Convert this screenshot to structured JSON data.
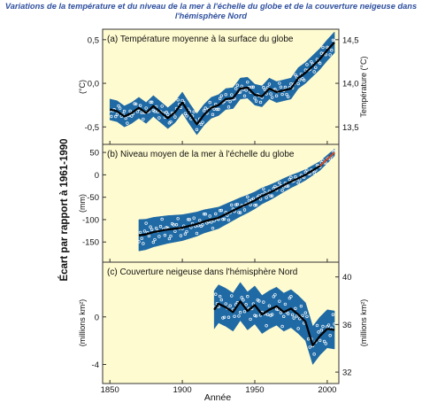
{
  "title_line1": "Variations de la température et du niveau de la mer à l'échelle du globe et de la couverture neigeuse dans",
  "title_line2": "l'hémisphère Nord",
  "shared": {
    "left_axis_label": "Écart par rapport à 1961-1990",
    "xlabel": "Année",
    "xticks": [
      1850,
      1900,
      1950,
      2000
    ],
    "xlim": [
      1845,
      2008
    ],
    "colors": {
      "panel_bg": "#fffbd0",
      "band": "#1f6aa5",
      "smooth": "#000000",
      "points": "#ffffff",
      "recent": "#e8502a",
      "frame": "#333333"
    }
  },
  "chart_data": [
    {
      "type": "line",
      "panel_label": "(a) Température moyenne à la surface du globe",
      "ylabel": "(°C)",
      "right_ylabel": "Température (°C)",
      "ylim": [
        -0.7,
        0.62
      ],
      "yticks": [
        {
          "v": 0.5,
          "t": "0,5"
        },
        {
          "v": 0.0,
          "t": "0,0"
        },
        {
          "v": -0.5,
          "t": "-0,5"
        }
      ],
      "right_ticks": [
        {
          "v": 0.5,
          "t": "14,5"
        },
        {
          "v": 0.0,
          "t": "14,0"
        },
        {
          "v": -0.5,
          "t": "13,5"
        }
      ],
      "series": [
        {
          "x": [
            1850,
            1855,
            1860,
            1865,
            1870,
            1875,
            1880,
            1885,
            1890,
            1895,
            1900,
            1905,
            1910,
            1915,
            1920,
            1925,
            1930,
            1935,
            1940,
            1945,
            1950,
            1955,
            1960,
            1965,
            1970,
            1975,
            1980,
            1985,
            1990,
            1995,
            2000,
            2005
          ],
          "y": [
            -0.3,
            -0.32,
            -0.38,
            -0.34,
            -0.28,
            -0.34,
            -0.26,
            -0.33,
            -0.4,
            -0.33,
            -0.22,
            -0.35,
            -0.47,
            -0.36,
            -0.28,
            -0.25,
            -0.18,
            -0.17,
            -0.06,
            -0.05,
            -0.13,
            -0.15,
            -0.06,
            -0.1,
            -0.08,
            -0.06,
            0.06,
            0.12,
            0.2,
            0.28,
            0.38,
            0.47
          ],
          "band": 0.12
        }
      ]
    },
    {
      "type": "line",
      "panel_label": "(b) Niveau moyen de la mer à l'échelle du globe",
      "ylabel": "(mm)",
      "ylim": [
        -195,
        68
      ],
      "yticks": [
        {
          "v": 50,
          "t": "50"
        },
        {
          "v": 0,
          "t": "0"
        },
        {
          "v": -50,
          "t": "-50"
        },
        {
          "v": -100,
          "t": "-100"
        },
        {
          "v": -150,
          "t": "-150"
        }
      ],
      "series": [
        {
          "x": [
            1870,
            1875,
            1880,
            1885,
            1890,
            1895,
            1900,
            1905,
            1910,
            1915,
            1920,
            1925,
            1930,
            1935,
            1940,
            1945,
            1950,
            1955,
            1960,
            1965,
            1970,
            1975,
            1980,
            1985,
            1990,
            1995,
            2000,
            2005
          ],
          "y": [
            -135,
            -133,
            -128,
            -125,
            -122,
            -120,
            -118,
            -114,
            -110,
            -104,
            -100,
            -96,
            -88,
            -80,
            -72,
            -65,
            -57,
            -47,
            -40,
            -32,
            -23,
            -15,
            -8,
            0,
            10,
            20,
            35,
            50
          ],
          "band_start": 35,
          "band_end": 8
        }
      ]
    },
    {
      "type": "line",
      "panel_label": "(c) Couverture neigeuse dans l'hémisphère Nord",
      "ylabel": "(millions km²)",
      "right_ylabel": "(millions km²)",
      "ylim": [
        -5.6,
        4.6
      ],
      "yticks": [
        {
          "v": 0,
          "t": "0"
        },
        {
          "v": -4,
          "t": "-4"
        }
      ],
      "right_ticks": [
        {
          "v": 3.36,
          "t": "40"
        },
        {
          "v": -0.64,
          "t": "36"
        },
        {
          "v": -4.64,
          "t": "32"
        }
      ],
      "series": [
        {
          "x": [
            1922,
            1925,
            1930,
            1935,
            1940,
            1945,
            1950,
            1955,
            1960,
            1965,
            1970,
            1975,
            1980,
            1985,
            1990,
            1995,
            2000,
            2005
          ],
          "y": [
            0.6,
            1.1,
            0.8,
            0.4,
            1.3,
            0.5,
            1.0,
            0.2,
            0.6,
            0.9,
            0.4,
            0.7,
            0.2,
            -0.4,
            -2.4,
            -1.6,
            -1.0,
            -1.1
          ],
          "band": 1.6
        }
      ]
    }
  ]
}
